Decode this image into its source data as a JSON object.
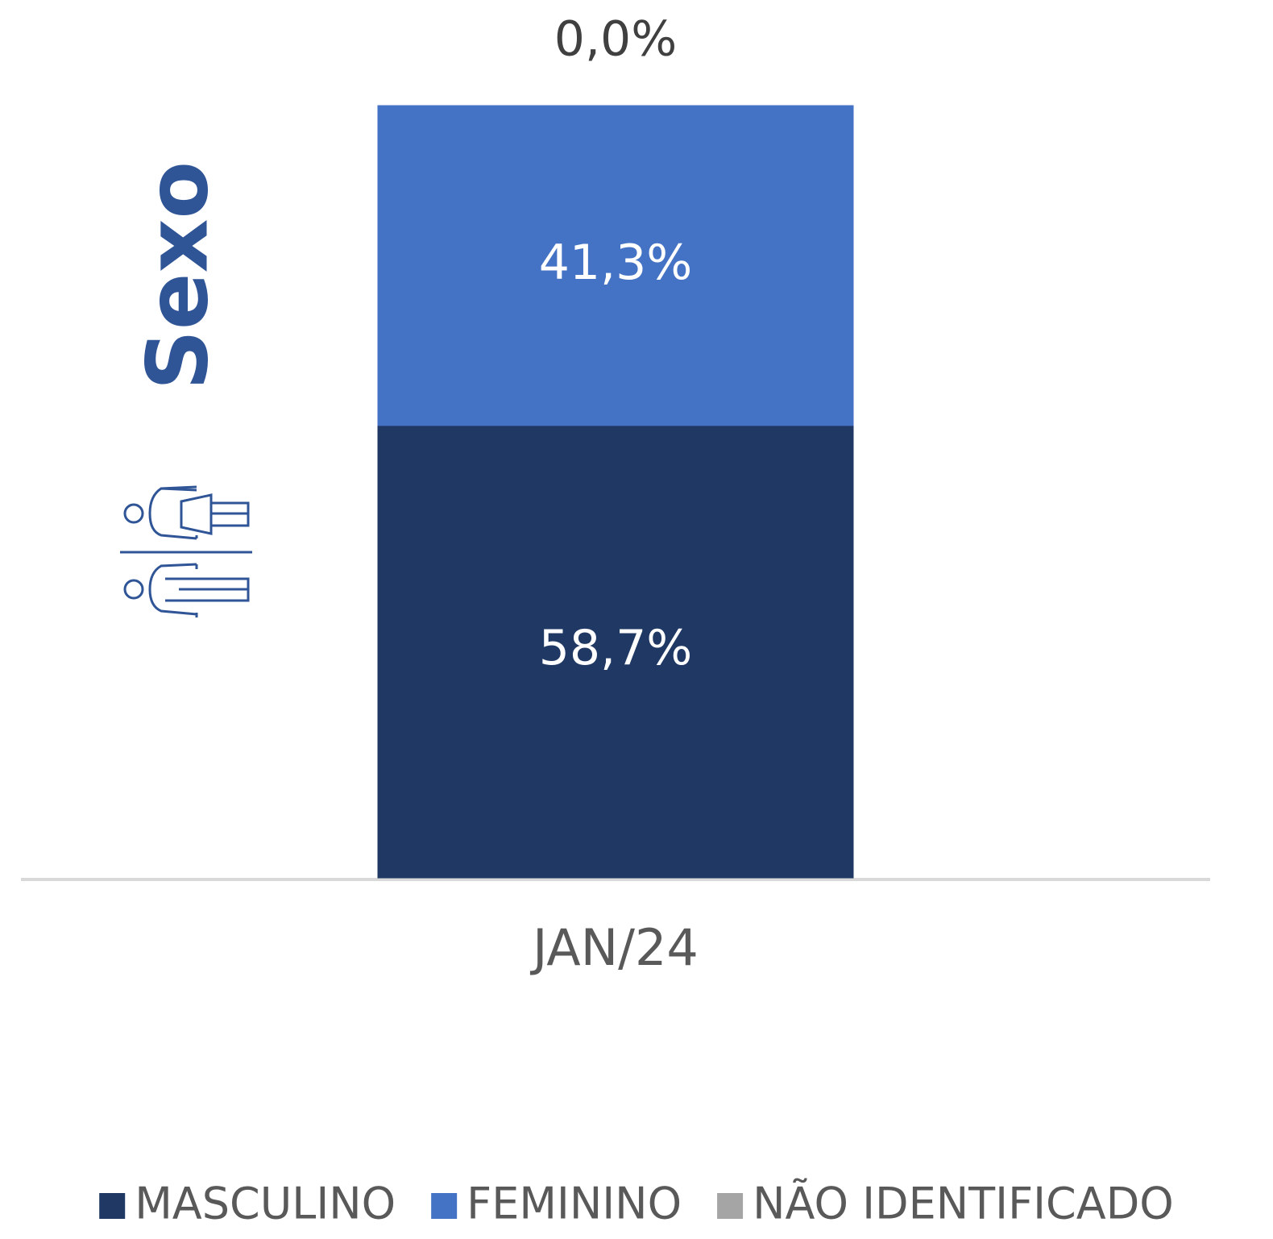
{
  "chart_data": {
    "type": "stacked_bar",
    "title": "Sexo",
    "categories": [
      "JAN/24"
    ],
    "series": [
      {
        "name": "MASCULINO",
        "color": "#203864",
        "values": [
          58.7
        ],
        "value_labels": [
          "58,7%"
        ]
      },
      {
        "name": "FEMININO",
        "color": "#4472c4",
        "values": [
          41.3
        ],
        "value_labels": [
          "41,3%"
        ]
      },
      {
        "name": "NÃO IDENTIFICADO",
        "color": "#a5a5a5",
        "values": [
          0.0
        ],
        "value_labels": [
          "0,0%"
        ]
      }
    ],
    "ylim": [
      0,
      100
    ],
    "legend": "bottom"
  }
}
